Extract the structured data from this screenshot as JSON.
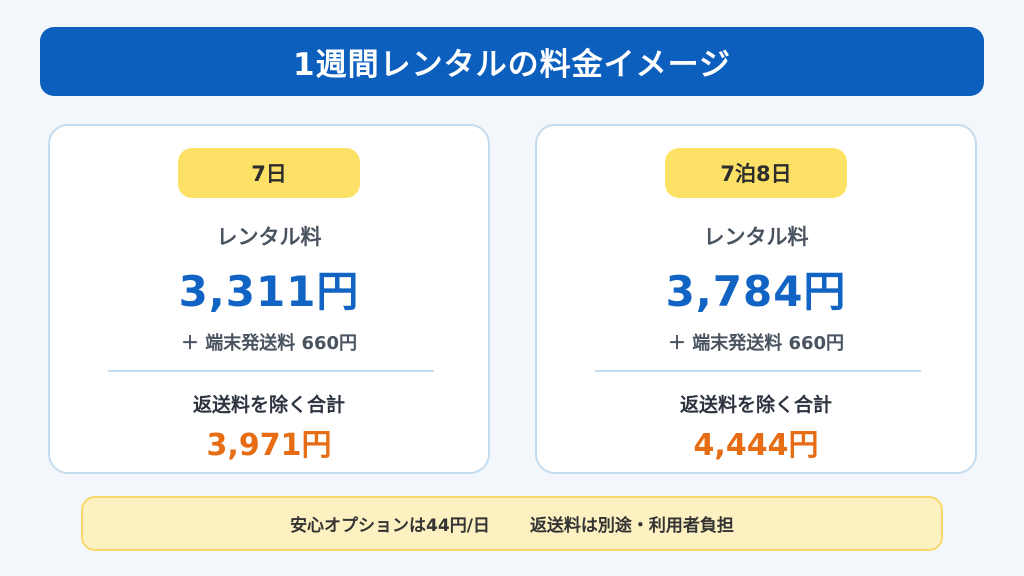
{
  "title": "1週間レンタルの料金イメージ",
  "plans": [
    {
      "duration": "7日",
      "rental_label": "レンタル料",
      "price": "3,311円",
      "shipping": "＋ 端末発送料 660円",
      "total_label": "返送料を除く合計",
      "total": "3,971円"
    },
    {
      "duration": "7泊8日",
      "rental_label": "レンタル料",
      "price": "3,784円",
      "shipping": "＋ 端末発送料 660円",
      "total_label": "返送料を除く合計",
      "total": "4,444円"
    }
  ],
  "notes": {
    "option": "安心オプションは44円/日",
    "return": "返送料は別途・利用者負担"
  },
  "colors": {
    "title_bg": "#0d5fbe",
    "price": "#1264c4",
    "total": "#e66d14",
    "pill": "#fde167",
    "note_bg": "#fdf1c2"
  }
}
